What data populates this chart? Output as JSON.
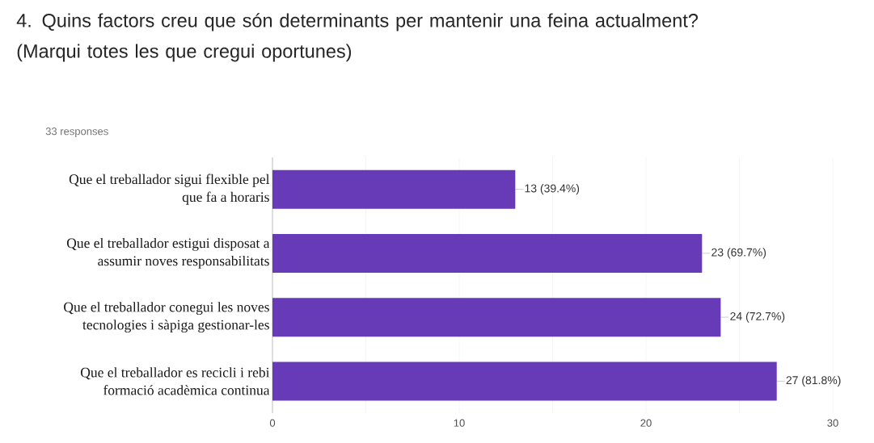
{
  "chart_data": {
    "type": "bar",
    "orientation": "horizontal",
    "title": "4. Quins factors creu que són determinants per mantenir una feina actualment? (Marqui totes les que cregui oportunes)",
    "subtitle": "33 responses",
    "categories": [
      "Que el treballador sigui flexible pel que fa a horaris",
      "Que el treballador estigui disposat a assumir noves responsabilitats",
      "Que el treballador conegui les noves tecnologies i sàpiga gestionar-les",
      "Que el treballador es recicli i rebi formació acadèmica continua"
    ],
    "values": [
      13,
      23,
      24,
      27
    ],
    "value_labels": [
      "13 (39.4%)",
      "23 (69.7%)",
      "24 (72.7%)",
      "27 (81.8%)"
    ],
    "color": "#673ab7",
    "xlim": [
      0,
      30
    ],
    "xticks": [
      0,
      {
        "value": 5,
        "label": null
      },
      10,
      {
        "value": 15,
        "label": null
      },
      20,
      {
        "value": 25,
        "label": null
      },
      30
    ],
    "grid": "x"
  }
}
